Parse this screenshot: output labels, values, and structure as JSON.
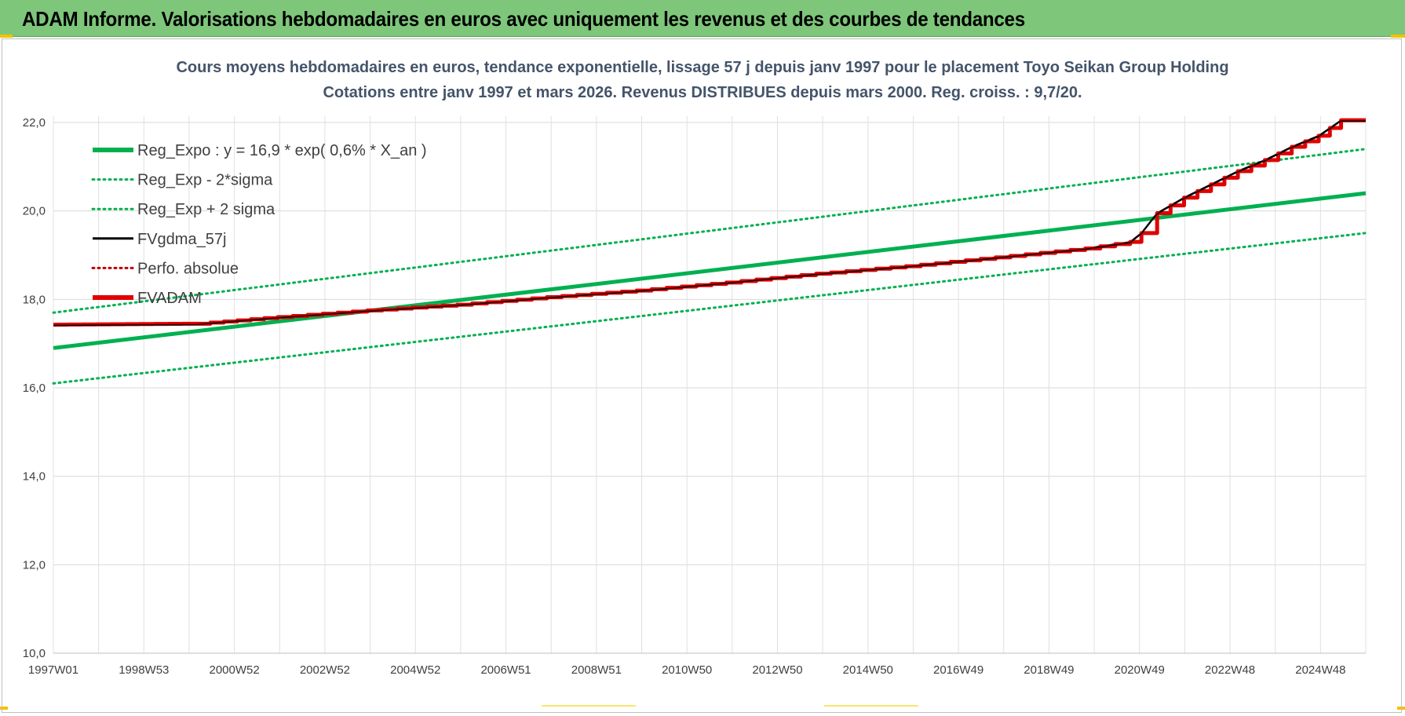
{
  "header": {
    "title": "ADAM Informe. Valorisations hebdomadaires en euros avec uniquement les revenus et des courbes de tendances"
  },
  "chart_data": {
    "type": "line",
    "title": "Cours moyens hebdomadaires en euros, tendance exponentielle, lissage 57 j depuis janv 1997 pour le placement Toyo Seikan Group Holding",
    "subtitle": "Cotations entre janv 1997 et mars 2026. Revenus DISTRIBUES depuis mars 2000. Reg. croiss. : 9,7/20.",
    "xlabel": "",
    "ylabel": "",
    "x_ticks": [
      "1997W01",
      "1998W53",
      "2000W52",
      "2002W52",
      "2004W52",
      "2006W51",
      "2008W51",
      "2010W50",
      "2012W50",
      "2014W50",
      "2016W49",
      "2018W49",
      "2020W49",
      "2022W48",
      "2024W48"
    ],
    "y_ticks": [
      "10,0",
      "12,0",
      "14,0",
      "16,0",
      "18,0",
      "20,0",
      "22,0"
    ],
    "ylim": [
      10,
      22.0
    ],
    "xlim": [
      1997.0,
      2026.25
    ],
    "grid": true,
    "legend_position": "top-left",
    "series": [
      {
        "name": "Reg_Expo : y = 16,9 * exp( 0,6% *  X_an )",
        "color": "#00b050",
        "style": "solid-thick",
        "x": [
          1997.0,
          2026.25
        ],
        "values": [
          16.9,
          20.4
        ]
      },
      {
        "name": "Reg_Exp - 2*sigma",
        "color": "#00b050",
        "style": "dotted",
        "x": [
          1997.0,
          2026.25
        ],
        "values": [
          16.1,
          19.5
        ]
      },
      {
        "name": "Reg_Exp + 2 sigma",
        "color": "#00b050",
        "style": "dotted",
        "x": [
          1997.0,
          2026.25
        ],
        "values": [
          17.7,
          21.4
        ]
      },
      {
        "name": "FVgdma_57j",
        "color": "#000000",
        "style": "solid",
        "x": [
          1997.0,
          2000.2,
          2002.0,
          2004.0,
          2006.0,
          2008.0,
          2010.0,
          2012.0,
          2014.0,
          2016.0,
          2018.0,
          2020.0,
          2021.0,
          2021.25,
          2021.6,
          2022.2,
          2022.8,
          2023.4,
          2024.0,
          2024.6,
          2025.2,
          2025.7,
          2026.25
        ],
        "values": [
          17.43,
          17.45,
          17.6,
          17.75,
          17.88,
          18.05,
          18.2,
          18.38,
          18.58,
          18.75,
          18.95,
          19.15,
          19.3,
          19.5,
          19.95,
          20.3,
          20.6,
          20.9,
          21.15,
          21.45,
          21.7,
          22.05,
          22.05
        ]
      },
      {
        "name": "Perfo. absolue",
        "color": "#c00000",
        "style": "dotted",
        "x": [],
        "values": []
      },
      {
        "name": "FVADAM",
        "color": "#e00000",
        "style": "solid-thick-steps",
        "x": [
          1997.0,
          2000.2,
          2002.0,
          2004.0,
          2006.0,
          2008.0,
          2010.0,
          2012.0,
          2014.0,
          2016.0,
          2018.0,
          2020.0,
          2021.0,
          2021.25,
          2021.6,
          2022.2,
          2022.8,
          2023.4,
          2024.0,
          2024.6,
          2025.2,
          2025.7,
          2026.25
        ],
        "values": [
          17.43,
          17.45,
          17.6,
          17.75,
          17.88,
          18.05,
          18.2,
          18.38,
          18.58,
          18.75,
          18.95,
          19.15,
          19.3,
          19.5,
          19.95,
          20.3,
          20.6,
          20.9,
          21.15,
          21.45,
          21.7,
          22.05,
          22.05
        ]
      }
    ]
  },
  "colors": {
    "banner": "#7dc67a",
    "grid": "#d9d9d9",
    "accent": "#f2c200"
  }
}
